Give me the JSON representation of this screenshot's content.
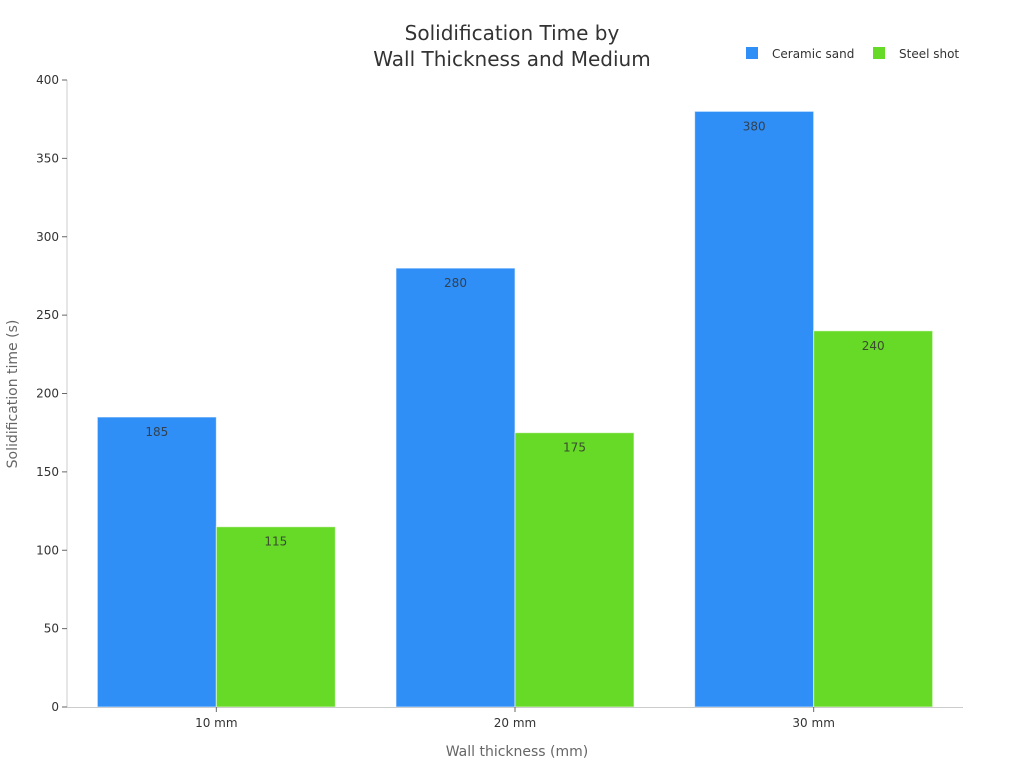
{
  "chart_data": {
    "type": "bar",
    "title": "Solidification Time by Wall Thickness and Medium",
    "title_lines": [
      "Solidification Time by",
      "Wall Thickness and Medium"
    ],
    "xlabel": "Wall thickness (mm)",
    "ylabel": "Solidification time (s)",
    "categories": [
      "10 mm",
      "20 mm",
      "30 mm"
    ],
    "series": [
      {
        "name": "Ceramic sand",
        "color": "#2F8FF7",
        "values": [
          185,
          280,
          380
        ]
      },
      {
        "name": "Steel shot",
        "color": "#66DA26",
        "values": [
          115,
          175,
          240
        ]
      }
    ],
    "ylim": [
      0,
      400
    ],
    "yticks": [
      0,
      50,
      100,
      150,
      200,
      250,
      300,
      350,
      400
    ],
    "grid": false,
    "legend_position": "top-right",
    "data_labels": true
  }
}
